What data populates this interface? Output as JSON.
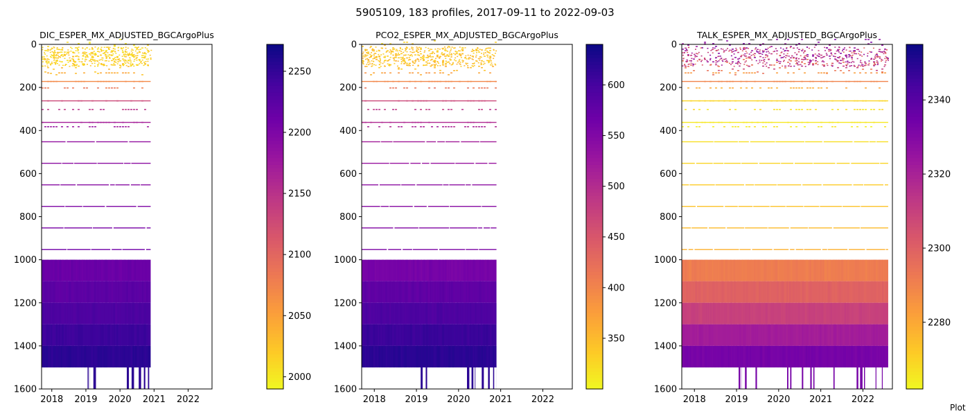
{
  "figure": {
    "suptitle": "5905109, 183 profiles, 2017-09-11 to 2022-09-03",
    "footer": "Plot"
  },
  "colors": {
    "plasma": [
      "#0d0887",
      "#46039f",
      "#7201a8",
      "#9c179e",
      "#bd3786",
      "#d8576b",
      "#ed7953",
      "#fb9f3a",
      "#fdca26",
      "#f0f921"
    ]
  },
  "chart_data": [
    {
      "type": "heatmap",
      "title": "DIC_ESPER_MX_ADJUSTED_BGCArgoPlus",
      "xlim": [
        2017.7,
        2022.7
      ],
      "ylim": [
        1600,
        0
      ],
      "y_inverted": true,
      "x_ticks": [
        "2018",
        "2019",
        "2020",
        "2021",
        "2022"
      ],
      "y_ticks": [
        "0",
        "200",
        "400",
        "600",
        "800",
        "1000",
        "1200",
        "1400",
        "1600"
      ],
      "colorbar": {
        "min": 1990,
        "max": 2272,
        "ticks": [
          "2000",
          "2050",
          "2100",
          "2150",
          "2200",
          "2250"
        ],
        "colormap": "plasma"
      },
      "data_end_year": 2020.9,
      "deep_end_year": 2020.9,
      "data_end_year_gaps": [
        [
          2019.05,
          2019.12
        ],
        [
          2019.22,
          2019.3
        ],
        [
          2020.2,
          2020.42
        ],
        [
          2020.55,
          2020.62
        ],
        [
          2020.7,
          2020.75
        ],
        [
          2020.82,
          2020.9
        ]
      ],
      "shallow_levels": [
        {
          "depth": 20,
          "value": 2005
        },
        {
          "depth": 40,
          "value": 2010
        },
        {
          "depth": 60,
          "value": 2015
        },
        {
          "depth": 80,
          "value": 2020
        },
        {
          "depth": 100,
          "value": 2030
        },
        {
          "depth": 130,
          "value": 2045
        },
        {
          "depth": 170,
          "value": 2070
        },
        {
          "depth": 200,
          "value": 2085
        },
        {
          "depth": 260,
          "value": 2130
        },
        {
          "depth": 300,
          "value": 2150
        },
        {
          "depth": 360,
          "value": 2170
        },
        {
          "depth": 380,
          "value": 2180
        }
      ],
      "single_lines": [
        {
          "depth": 450,
          "value": 2185
        },
        {
          "depth": 550,
          "value": 2190
        },
        {
          "depth": 650,
          "value": 2195
        },
        {
          "depth": 750,
          "value": 2200
        },
        {
          "depth": 850,
          "value": 2205
        },
        {
          "depth": 950,
          "value": 2210
        }
      ],
      "deep_bands": [
        {
          "from": 1000,
          "to": 1100,
          "value": 2215
        },
        {
          "from": 1100,
          "to": 1200,
          "value": 2225
        },
        {
          "from": 1200,
          "to": 1300,
          "value": 2235
        },
        {
          "from": 1300,
          "to": 1400,
          "value": 2245
        },
        {
          "from": 1400,
          "to": 1500,
          "value": 2255
        }
      ]
    },
    {
      "type": "heatmap",
      "title": "PCO2_ESPER_MX_ADJUSTED_BGCArgoPlus",
      "xlim": [
        2017.7,
        2022.7
      ],
      "ylim": [
        1600,
        0
      ],
      "y_inverted": true,
      "x_ticks": [
        "2018",
        "2019",
        "2020",
        "2021",
        "2022"
      ],
      "y_ticks": [
        "0",
        "200",
        "400",
        "600",
        "800",
        "1000",
        "1200",
        "1400",
        "1600"
      ],
      "colorbar": {
        "min": 300,
        "max": 640,
        "ticks": [
          "350",
          "400",
          "450",
          "500",
          "550",
          "600"
        ],
        "colormap": "plasma"
      },
      "data_end_year": 2020.9,
      "deep_end_year": 2020.9,
      "data_end_year_gaps": [
        [
          2019.1,
          2019.15
        ],
        [
          2019.22,
          2019.28
        ],
        [
          2020.2,
          2020.4
        ],
        [
          2020.55,
          2020.6
        ],
        [
          2020.7,
          2020.75
        ],
        [
          2020.82,
          2020.9
        ]
      ],
      "shallow_levels": [
        {
          "depth": 20,
          "value": 330
        },
        {
          "depth": 40,
          "value": 335
        },
        {
          "depth": 60,
          "value": 340
        },
        {
          "depth": 80,
          "value": 345
        },
        {
          "depth": 100,
          "value": 360
        },
        {
          "depth": 130,
          "value": 380
        },
        {
          "depth": 170,
          "value": 400
        },
        {
          "depth": 200,
          "value": 420
        },
        {
          "depth": 260,
          "value": 470
        },
        {
          "depth": 300,
          "value": 490
        },
        {
          "depth": 360,
          "value": 505
        },
        {
          "depth": 380,
          "value": 510
        }
      ],
      "single_lines": [
        {
          "depth": 450,
          "value": 520
        },
        {
          "depth": 550,
          "value": 530
        },
        {
          "depth": 650,
          "value": 540
        },
        {
          "depth": 750,
          "value": 545
        },
        {
          "depth": 850,
          "value": 550
        },
        {
          "depth": 950,
          "value": 555
        }
      ],
      "deep_bands": [
        {
          "from": 1000,
          "to": 1100,
          "value": 560
        },
        {
          "from": 1100,
          "to": 1200,
          "value": 580
        },
        {
          "from": 1200,
          "to": 1300,
          "value": 595
        },
        {
          "from": 1300,
          "to": 1400,
          "value": 610
        },
        {
          "from": 1400,
          "to": 1500,
          "value": 620
        }
      ]
    },
    {
      "type": "heatmap",
      "title": "TALK_ESPER_MX_ADJUSTED_BGCArgoPlus",
      "xlim": [
        2017.7,
        2022.7
      ],
      "ylim": [
        1600,
        0
      ],
      "y_inverted": true,
      "x_ticks": [
        "2018",
        "2019",
        "2020",
        "2021",
        "2022"
      ],
      "y_ticks": [
        "0",
        "200",
        "400",
        "600",
        "800",
        "1000",
        "1200",
        "1400",
        "1600"
      ],
      "colorbar": {
        "min": 2262,
        "max": 2355,
        "ticks": [
          "2280",
          "2300",
          "2320",
          "2340"
        ],
        "colormap": "plasma"
      },
      "data_end_year": 2022.6,
      "deep_end_year": 2022.6,
      "data_end_year_gaps": [
        [
          2019.05,
          2019.12
        ],
        [
          2019.2,
          2019.28
        ],
        [
          2019.45,
          2019.5
        ],
        [
          2020.2,
          2020.35
        ],
        [
          2020.55,
          2020.62
        ],
        [
          2020.75,
          2020.85
        ],
        [
          2021.3,
          2021.35
        ],
        [
          2021.85,
          2022.05
        ],
        [
          2022.3,
          2022.32
        ],
        [
          2022.45,
          2022.47
        ]
      ],
      "shallow_levels": [
        {
          "depth": 20,
          "value": 2330
        },
        {
          "depth": 40,
          "value": 2325
        },
        {
          "depth": 60,
          "value": 2315
        },
        {
          "depth": 80,
          "value": 2310
        },
        {
          "depth": 100,
          "value": 2295
        },
        {
          "depth": 130,
          "value": 2285
        },
        {
          "depth": 170,
          "value": 2290
        },
        {
          "depth": 200,
          "value": 2280
        },
        {
          "depth": 260,
          "value": 2270
        },
        {
          "depth": 300,
          "value": 2268
        },
        {
          "depth": 360,
          "value": 2266
        },
        {
          "depth": 380,
          "value": 2265
        }
      ],
      "single_lines": [
        {
          "depth": 450,
          "value": 2268
        },
        {
          "depth": 550,
          "value": 2270
        },
        {
          "depth": 650,
          "value": 2272
        },
        {
          "depth": 750,
          "value": 2274
        },
        {
          "depth": 850,
          "value": 2276
        },
        {
          "depth": 950,
          "value": 2278
        }
      ],
      "deep_bands": [
        {
          "from": 1000,
          "to": 1100,
          "value": 2292
        },
        {
          "from": 1100,
          "to": 1200,
          "value": 2300
        },
        {
          "from": 1200,
          "to": 1300,
          "value": 2310
        },
        {
          "from": 1300,
          "to": 1400,
          "value": 2322
        },
        {
          "from": 1400,
          "to": 1500,
          "value": 2333
        }
      ]
    }
  ]
}
